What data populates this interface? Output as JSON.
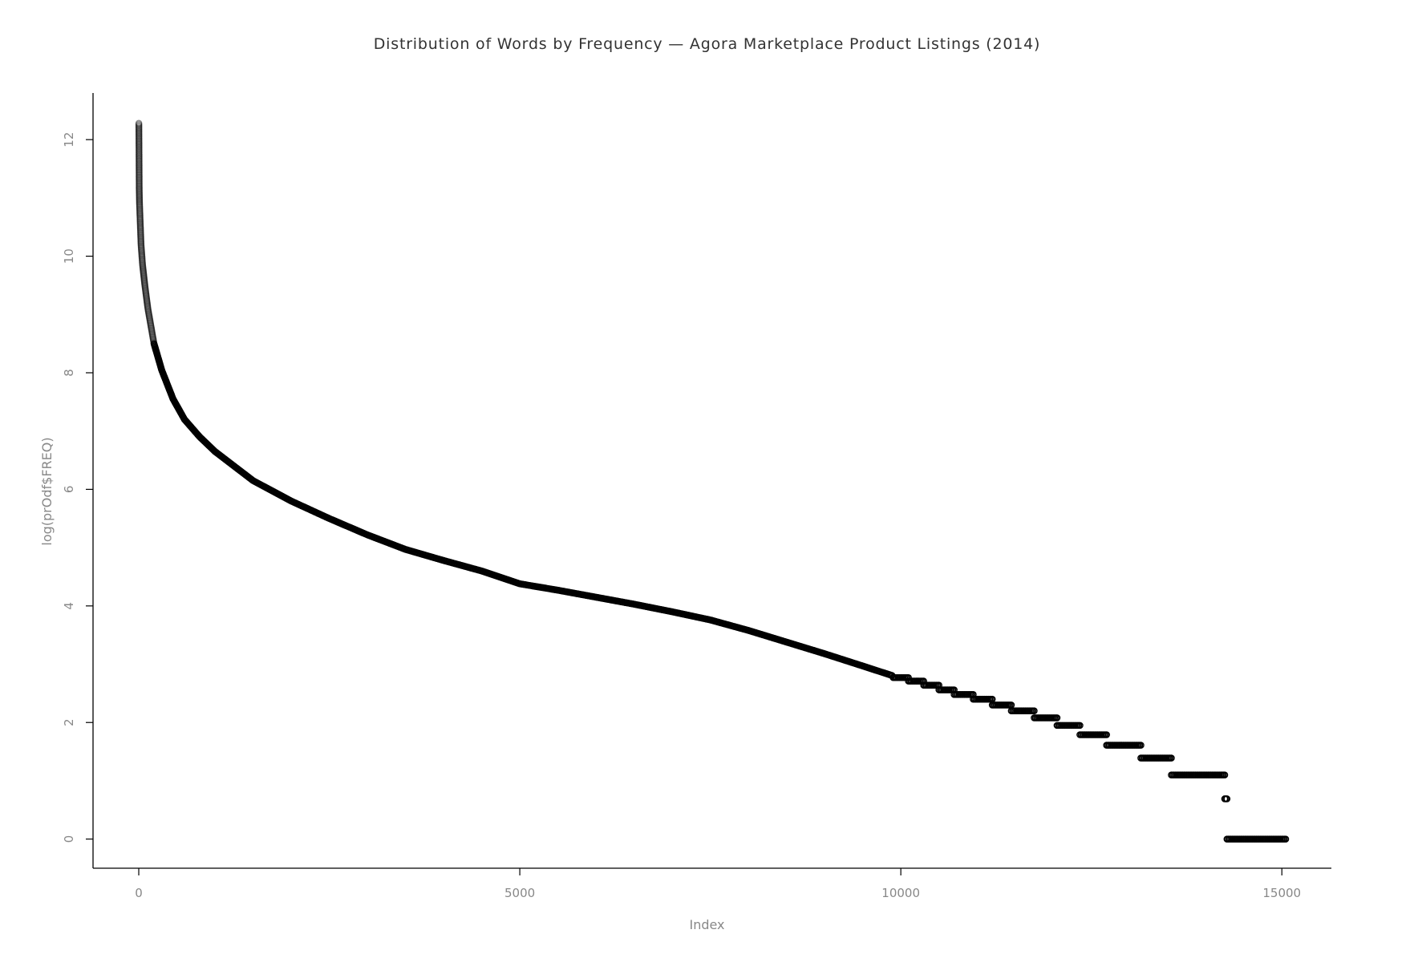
{
  "chart_data": {
    "type": "scatter",
    "title": "Distribution of Words by Frequency — Agora Marketplace Product Listings (2014)",
    "xlabel": "Index",
    "ylabel": "log(prOdf$FREQ)",
    "xlim": [
      -600,
      15650
    ],
    "ylim": [
      -0.5,
      12.8
    ],
    "x_ticks": [
      0,
      5000,
      10000,
      15000
    ],
    "y_ticks": [
      0,
      2,
      4,
      6,
      8,
      10,
      12
    ],
    "grid": false,
    "legend": "none",
    "marker": "open-circle",
    "series_color": "#000000",
    "curve": [
      {
        "x": 1,
        "y": 12.28
      },
      {
        "x": 3,
        "y": 11.9
      },
      {
        "x": 6,
        "y": 11.15
      },
      {
        "x": 10,
        "y": 10.9
      },
      {
        "x": 20,
        "y": 10.55
      },
      {
        "x": 30,
        "y": 10.2
      },
      {
        "x": 50,
        "y": 9.85
      },
      {
        "x": 80,
        "y": 9.5
      },
      {
        "x": 120,
        "y": 9.1
      },
      {
        "x": 200,
        "y": 8.5
      },
      {
        "x": 300,
        "y": 8.05
      },
      {
        "x": 450,
        "y": 7.55
      },
      {
        "x": 600,
        "y": 7.2
      },
      {
        "x": 800,
        "y": 6.9
      },
      {
        "x": 1000,
        "y": 6.65
      },
      {
        "x": 1500,
        "y": 6.15
      },
      {
        "x": 2000,
        "y": 5.8
      },
      {
        "x": 2500,
        "y": 5.5
      },
      {
        "x": 3000,
        "y": 5.22
      },
      {
        "x": 3500,
        "y": 4.97
      },
      {
        "x": 4000,
        "y": 4.78
      },
      {
        "x": 4500,
        "y": 4.6
      },
      {
        "x": 5000,
        "y": 4.38
      },
      {
        "x": 5500,
        "y": 4.27
      },
      {
        "x": 6000,
        "y": 4.15
      },
      {
        "x": 6500,
        "y": 4.03
      },
      {
        "x": 7000,
        "y": 3.9
      },
      {
        "x": 7500,
        "y": 3.76
      },
      {
        "x": 8000,
        "y": 3.58
      },
      {
        "x": 8500,
        "y": 3.38
      },
      {
        "x": 9000,
        "y": 3.18
      },
      {
        "x": 9500,
        "y": 2.97
      },
      {
        "x": 9900,
        "y": 2.8
      }
    ],
    "steps": [
      {
        "x_start": 9900,
        "x_end": 10100,
        "y": 2.77
      },
      {
        "x_start": 10100,
        "x_end": 10300,
        "y": 2.71
      },
      {
        "x_start": 10300,
        "x_end": 10500,
        "y": 2.64
      },
      {
        "x_start": 10500,
        "x_end": 10700,
        "y": 2.56
      },
      {
        "x_start": 10700,
        "x_end": 10950,
        "y": 2.48
      },
      {
        "x_start": 10950,
        "x_end": 11200,
        "y": 2.4
      },
      {
        "x_start": 11200,
        "x_end": 11450,
        "y": 2.3
      },
      {
        "x_start": 11450,
        "x_end": 11750,
        "y": 2.2
      },
      {
        "x_start": 11750,
        "x_end": 12050,
        "y": 2.08
      },
      {
        "x_start": 12050,
        "x_end": 12350,
        "y": 1.95
      },
      {
        "x_start": 12350,
        "x_end": 12700,
        "y": 1.79
      },
      {
        "x_start": 12700,
        "x_end": 13150,
        "y": 1.61
      },
      {
        "x_start": 13150,
        "x_end": 13550,
        "y": 1.39
      },
      {
        "x_start": 13550,
        "x_end": 14250,
        "y": 1.1
      },
      {
        "x_start": 14250,
        "x_end": 14280,
        "y": 0.69
      },
      {
        "x_start": 14280,
        "x_end": 15050,
        "y": 0.0
      }
    ],
    "n_points": 15050
  }
}
